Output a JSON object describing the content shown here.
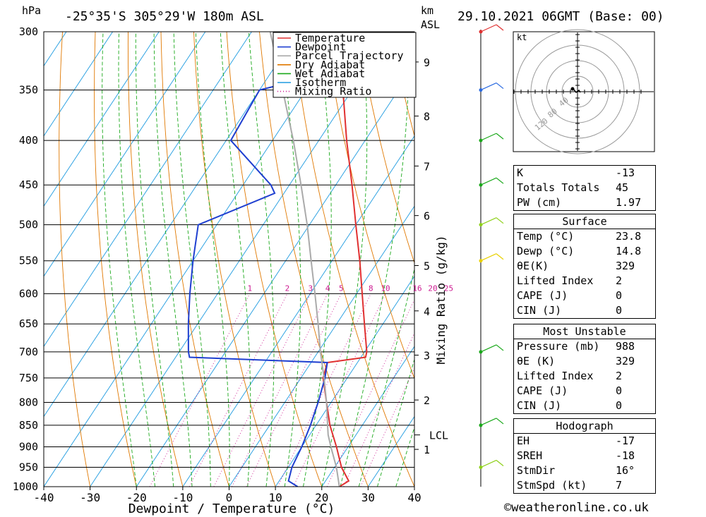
{
  "header": {
    "location": "-25°35'S 305°29'W 180m ASL",
    "datetime": "29.10.2021 06GMT (Base: 00)",
    "pressure_unit": "hPa",
    "height_unit_line1": "km",
    "height_unit_line2": "ASL"
  },
  "chart_data": {
    "type": "line",
    "title": "-25°35'S 305°29'W 180m ASL",
    "xlabel": "Dewpoint / Temperature (°C)",
    "ylabel": "hPa",
    "secondary_ylabel": "Mixing Ratio (g/kg)",
    "xlim": [
      -40,
      40
    ],
    "ylim": [
      1000,
      300
    ],
    "y_scale": "log",
    "skew": "temperature lines skewed right with height",
    "x_ticks": [
      -40,
      -30,
      -20,
      -10,
      0,
      10,
      20,
      30,
      40
    ],
    "pressure_levels": [
      300,
      350,
      400,
      450,
      500,
      550,
      600,
      650,
      700,
      750,
      800,
      850,
      900,
      950,
      1000
    ],
    "height_ticks": [
      {
        "km": "1",
        "p": 906
      },
      {
        "km": "2",
        "p": 795
      },
      {
        "km": "3",
        "p": 706
      },
      {
        "km": "4",
        "p": 628
      },
      {
        "km": "5",
        "p": 557
      },
      {
        "km": "6",
        "p": 488
      },
      {
        "km": "7",
        "p": 428
      },
      {
        "km": "8",
        "p": 375
      },
      {
        "km": "9",
        "p": 325
      }
    ],
    "lcl": {
      "label": "LCL",
      "p": 872
    },
    "mixing_ratio_labels": [
      "1",
      "2",
      "3",
      "4",
      "5",
      "8",
      "10",
      "16",
      "20",
      "25"
    ],
    "legend_position": "top-center",
    "legend": [
      {
        "name": "Temperature",
        "color": "#e03030",
        "style": "solid"
      },
      {
        "name": "Dewpoint",
        "color": "#1f3fd0",
        "style": "solid"
      },
      {
        "name": "Parcel Trajectory",
        "color": "#aaaaaa",
        "style": "solid"
      },
      {
        "name": "Dry Adiabat",
        "color": "#e07800",
        "style": "solid"
      },
      {
        "name": "Wet Adiabat",
        "color": "#1aa81a",
        "style": "solid"
      },
      {
        "name": "Isotherm",
        "color": "#1e9be0",
        "style": "solid"
      },
      {
        "name": "Mixing Ratio",
        "color": "#cc1890",
        "style": "dotted"
      }
    ],
    "series": [
      {
        "name": "Temperature",
        "color": "#e03030",
        "points": [
          [
            1000,
            23.8
          ],
          [
            985,
            25
          ],
          [
            950,
            21.5
          ],
          [
            900,
            17.5
          ],
          [
            850,
            13
          ],
          [
            800,
            9
          ],
          [
            750,
            4.8
          ],
          [
            720,
            3.5
          ],
          [
            710,
            11
          ],
          [
            700,
            10.5
          ],
          [
            650,
            6
          ],
          [
            600,
            1.2
          ],
          [
            550,
            -4
          ],
          [
            500,
            -10
          ],
          [
            450,
            -16.5
          ],
          [
            400,
            -24
          ],
          [
            350,
            -32
          ],
          [
            340,
            -33
          ],
          [
            300,
            -41
          ]
        ]
      },
      {
        "name": "Dewpoint",
        "color": "#1f3fd0",
        "points": [
          [
            1000,
            14.8
          ],
          [
            985,
            12
          ],
          [
            950,
            10.8
          ],
          [
            900,
            10
          ],
          [
            850,
            8.8
          ],
          [
            800,
            7.2
          ],
          [
            750,
            5.2
          ],
          [
            720,
            3.5
          ],
          [
            710,
            -27
          ],
          [
            700,
            -28
          ],
          [
            650,
            -32
          ],
          [
            600,
            -36
          ],
          [
            550,
            -40
          ],
          [
            500,
            -44
          ],
          [
            460,
            -32
          ],
          [
            450,
            -34
          ],
          [
            400,
            -49
          ],
          [
            350,
            -50
          ],
          [
            345,
            -46
          ],
          [
            310,
            -44
          ],
          [
            300,
            -45
          ]
        ]
      },
      {
        "name": "Parcel Trajectory",
        "color": "#aaaaaa",
        "points": [
          [
            1000,
            23.8
          ],
          [
            950,
            20.4
          ],
          [
            900,
            16.3
          ],
          [
            872,
            14
          ],
          [
            850,
            12.5
          ],
          [
            800,
            9
          ],
          [
            750,
            5
          ],
          [
            700,
            0.5
          ],
          [
            650,
            -4
          ],
          [
            600,
            -9
          ],
          [
            550,
            -14.5
          ],
          [
            500,
            -20.5
          ],
          [
            450,
            -27.5
          ],
          [
            400,
            -35.5
          ],
          [
            350,
            -45
          ],
          [
            300,
            -56
          ]
        ]
      }
    ]
  },
  "hodograph": {
    "unit": "kt",
    "ring_labels": [
      "40",
      "80",
      "120"
    ]
  },
  "indices": [
    {
      "label": "K",
      "value": "-13"
    },
    {
      "label": "Totals Totals",
      "value": "45"
    },
    {
      "label": "PW (cm)",
      "value": "1.97"
    }
  ],
  "surface": {
    "title": "Surface",
    "rows": [
      {
        "label": "Temp (°C)",
        "value": "23.8"
      },
      {
        "label": "Dewp (°C)",
        "value": "14.8"
      },
      {
        "label": "θE(K)",
        "value": "329"
      },
      {
        "label": "Lifted Index",
        "value": "2"
      },
      {
        "label": "CAPE (J)",
        "value": "0"
      },
      {
        "label": "CIN (J)",
        "value": "0"
      }
    ]
  },
  "most_unstable": {
    "title": "Most Unstable",
    "rows": [
      {
        "label": "Pressure (mb)",
        "value": "988"
      },
      {
        "label": "θE (K)",
        "value": "329"
      },
      {
        "label": "Lifted Index",
        "value": "2"
      },
      {
        "label": "CAPE (J)",
        "value": "0"
      },
      {
        "label": "CIN (J)",
        "value": "0"
      }
    ]
  },
  "hodo_table": {
    "title": "Hodograph",
    "rows": [
      {
        "label": "EH",
        "value": "-17"
      },
      {
        "label": "SREH",
        "value": "-18"
      },
      {
        "label": "StmDir",
        "value": "16°"
      },
      {
        "label": "StmSpd (kt)",
        "value": "7"
      }
    ]
  },
  "winds": [
    {
      "p": 300,
      "color": "#e03030"
    },
    {
      "p": 350,
      "color": "#2a6ae0"
    },
    {
      "p": 400,
      "color": "#1aa81a"
    },
    {
      "p": 450,
      "color": "#1aa81a"
    },
    {
      "p": 500,
      "color": "#8ed01a"
    },
    {
      "p": 550,
      "color": "#e8d000"
    },
    {
      "p": 700,
      "color": "#1aa81a"
    },
    {
      "p": 850,
      "color": "#1aa81a"
    },
    {
      "p": 950,
      "color": "#8ed01a"
    }
  ],
  "credit": "©weatheronline.co.uk"
}
